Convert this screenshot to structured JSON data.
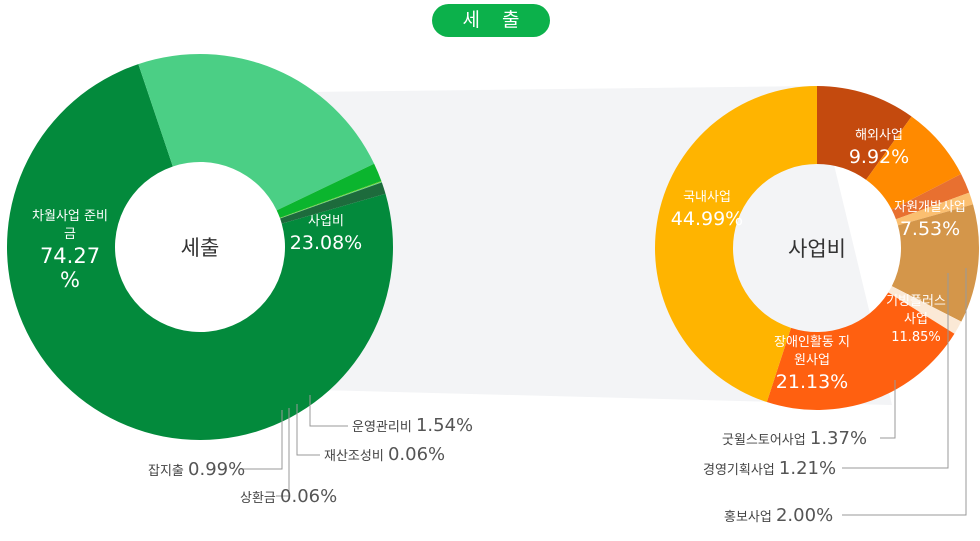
{
  "header": {
    "title": "세 출"
  },
  "chart_data": [
    {
      "type": "pie",
      "donut": true,
      "center_label": "세출",
      "slices": [
        {
          "name": "차월사업 준비금",
          "value": 74.27,
          "label": "74.27 %",
          "color": "#038a3c"
        },
        {
          "name": "사업비",
          "value": 23.08,
          "label": "23.08%",
          "color": "#4bcf85"
        },
        {
          "name": "운영관리비",
          "value": 1.54,
          "label": "1.54%",
          "color": "#0bb52e"
        },
        {
          "name": "재산조성비",
          "value": 0.06,
          "label": "0.06%",
          "color": "#6cc70a"
        },
        {
          "name": "상환금",
          "value": 0.06,
          "label": "0.06%",
          "color": "#5ee08f"
        },
        {
          "name": "잡지출",
          "value": 0.99,
          "label": "0.99%",
          "color": "#1d6b3c"
        }
      ]
    },
    {
      "type": "pie",
      "donut": true,
      "center_label": "사업비",
      "slices": [
        {
          "name": "해외사업",
          "value": 9.92,
          "label": "9.92%",
          "color": "#c44a0e"
        },
        {
          "name": "자원개발사업",
          "value": 7.53,
          "label": "7.53%",
          "color": "#ff8a00"
        },
        {
          "name": "홍보사업",
          "value": 2.0,
          "label": "2.00%",
          "color": "#e87030"
        },
        {
          "name": "경영기획사업",
          "value": 1.21,
          "label": "1.21%",
          "color": "#fbbf70"
        },
        {
          "name": "기빙플러스 사업",
          "value": 11.85,
          "label": "11.85%",
          "color": "#d4964a"
        },
        {
          "name": "굿윌스토어사업",
          "value": 1.37,
          "label": "1.37%",
          "color": "#fbe9d6"
        },
        {
          "name": "장애인활동 지원사업",
          "value": 21.13,
          "label": "21.13%",
          "color": "#ff6010"
        },
        {
          "name": "국내사업",
          "value": 44.99,
          "label": "44.99%",
          "color": "#ffb400"
        }
      ]
    }
  ]
}
